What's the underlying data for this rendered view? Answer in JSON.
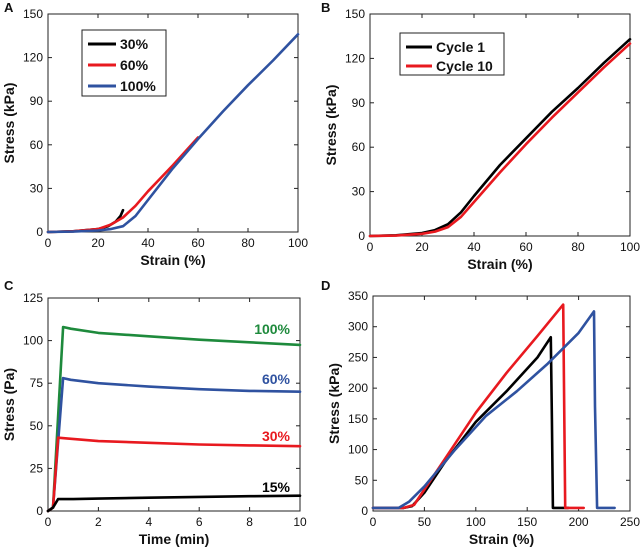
{
  "chart_data": [
    {
      "panel": "A",
      "type": "line",
      "xlabel": "Strain (%)",
      "ylabel": "Stress (kPa)",
      "xlim": [
        0,
        100
      ],
      "ylim": [
        0,
        150
      ],
      "xticks": [
        0,
        20,
        40,
        60,
        80,
        100
      ],
      "yticks": [
        0,
        30,
        60,
        90,
        120,
        150
      ],
      "legend": "top-left",
      "series": [
        {
          "name": "30%",
          "color": "#000000",
          "x": [
            0,
            10,
            20,
            24,
            27,
            29,
            30
          ],
          "y": [
            0,
            0.5,
            2,
            4,
            7,
            11,
            15
          ]
        },
        {
          "name": "60%",
          "color": "#e8191f",
          "x": [
            0,
            10,
            20,
            25,
            30,
            35,
            40,
            50,
            60
          ],
          "y": [
            0,
            0.5,
            2,
            5,
            10,
            18,
            28,
            46,
            65
          ]
        },
        {
          "name": "100%",
          "color": "#2f52a0",
          "x": [
            0,
            10,
            20,
            25,
            30,
            35,
            40,
            50,
            60,
            70,
            80,
            90,
            100
          ],
          "y": [
            0,
            0.3,
            1,
            2,
            4,
            11,
            22,
            44,
            64,
            83,
            101,
            118,
            136
          ]
        }
      ]
    },
    {
      "panel": "B",
      "type": "line",
      "xlabel": "Strain (%)",
      "ylabel": "Stress (kPa)",
      "xlim": [
        0,
        100
      ],
      "ylim": [
        0,
        150
      ],
      "xticks": [
        0,
        20,
        40,
        60,
        80,
        100
      ],
      "yticks": [
        0,
        30,
        60,
        90,
        120,
        150
      ],
      "legend": "top-left",
      "series": [
        {
          "name": "Cycle 1",
          "color": "#000000",
          "x": [
            0,
            10,
            20,
            25,
            30,
            35,
            40,
            50,
            60,
            70,
            80,
            90,
            100
          ],
          "y": [
            0,
            0.5,
            2,
            4,
            8,
            16,
            27,
            48,
            66,
            84,
            100,
            117,
            133
          ]
        },
        {
          "name": "Cycle 10",
          "color": "#e8191f",
          "x": [
            0,
            10,
            20,
            25,
            30,
            35,
            40,
            50,
            60,
            70,
            80,
            90,
            100
          ],
          "y": [
            0,
            0.3,
            1.5,
            3,
            6,
            13,
            23,
            43,
            62,
            80,
            97,
            114,
            130
          ]
        }
      ]
    },
    {
      "panel": "C",
      "type": "line",
      "xlabel": "Time (min)",
      "ylabel": "Stress (Pa)",
      "xlim": [
        0,
        10
      ],
      "ylim": [
        0,
        125
      ],
      "xticks": [
        0,
        2,
        4,
        6,
        8,
        10
      ],
      "yticks": [
        0,
        25,
        50,
        75,
        100,
        125
      ],
      "series": [
        {
          "name": "100%",
          "color": "#1e8a3c",
          "x": [
            0,
            0.2,
            0.6,
            0.9,
            2,
            4,
            6,
            8,
            10
          ],
          "y": [
            0,
            2,
            108,
            107,
            104.5,
            102.5,
            100.5,
            99,
            97.5
          ]
        },
        {
          "name": "60%",
          "color": "#2f52a0",
          "x": [
            0,
            0.2,
            0.6,
            0.9,
            2,
            4,
            6,
            8,
            10
          ],
          "y": [
            0,
            2,
            78,
            77,
            75,
            73,
            71.5,
            70.5,
            70
          ]
        },
        {
          "name": "30%",
          "color": "#e8191f",
          "x": [
            0,
            0.2,
            0.4,
            0.8,
            2,
            4,
            6,
            8,
            10
          ],
          "y": [
            0,
            2,
            43,
            42.5,
            41,
            40,
            39,
            38.5,
            38
          ]
        },
        {
          "name": "15%",
          "color": "#000000",
          "x": [
            0,
            0.2,
            0.4,
            1,
            2,
            4,
            6,
            8,
            10
          ],
          "y": [
            0,
            2,
            7,
            7,
            7.3,
            7.8,
            8.3,
            8.7,
            9
          ]
        }
      ],
      "annotations": [
        "100%",
        "60%",
        "30%",
        "15%"
      ]
    },
    {
      "panel": "D",
      "type": "line",
      "xlabel": "Strain (%)",
      "ylabel": "Stress (kPa)",
      "xlim": [
        0,
        250
      ],
      "ylim": [
        0,
        350
      ],
      "xticks": [
        0,
        50,
        100,
        150,
        200,
        250
      ],
      "yticks": [
        0,
        50,
        100,
        150,
        200,
        250,
        300,
        350
      ],
      "series": [
        {
          "name": "black",
          "color": "#000000",
          "x": [
            0,
            30,
            38,
            50,
            70,
            100,
            130,
            160,
            173,
            174,
            175,
            190
          ],
          "y": [
            5,
            5,
            8,
            30,
            80,
            145,
            195,
            250,
            283,
            150,
            5,
            5
          ]
        },
        {
          "name": "red",
          "color": "#e8191f",
          "x": [
            0,
            30,
            40,
            50,
            70,
            100,
            130,
            160,
            185,
            186,
            187,
            205
          ],
          "y": [
            5,
            5,
            10,
            35,
            85,
            160,
            225,
            285,
            336,
            170,
            5,
            5
          ]
        },
        {
          "name": "blue",
          "color": "#2f52a0",
          "x": [
            0,
            25,
            35,
            50,
            80,
            110,
            140,
            170,
            200,
            215,
            216,
            218,
            235
          ],
          "y": [
            5,
            5,
            15,
            40,
            100,
            155,
            195,
            240,
            290,
            325,
            170,
            5,
            5
          ]
        }
      ]
    }
  ],
  "panels": [
    "A",
    "B",
    "C",
    "D"
  ]
}
